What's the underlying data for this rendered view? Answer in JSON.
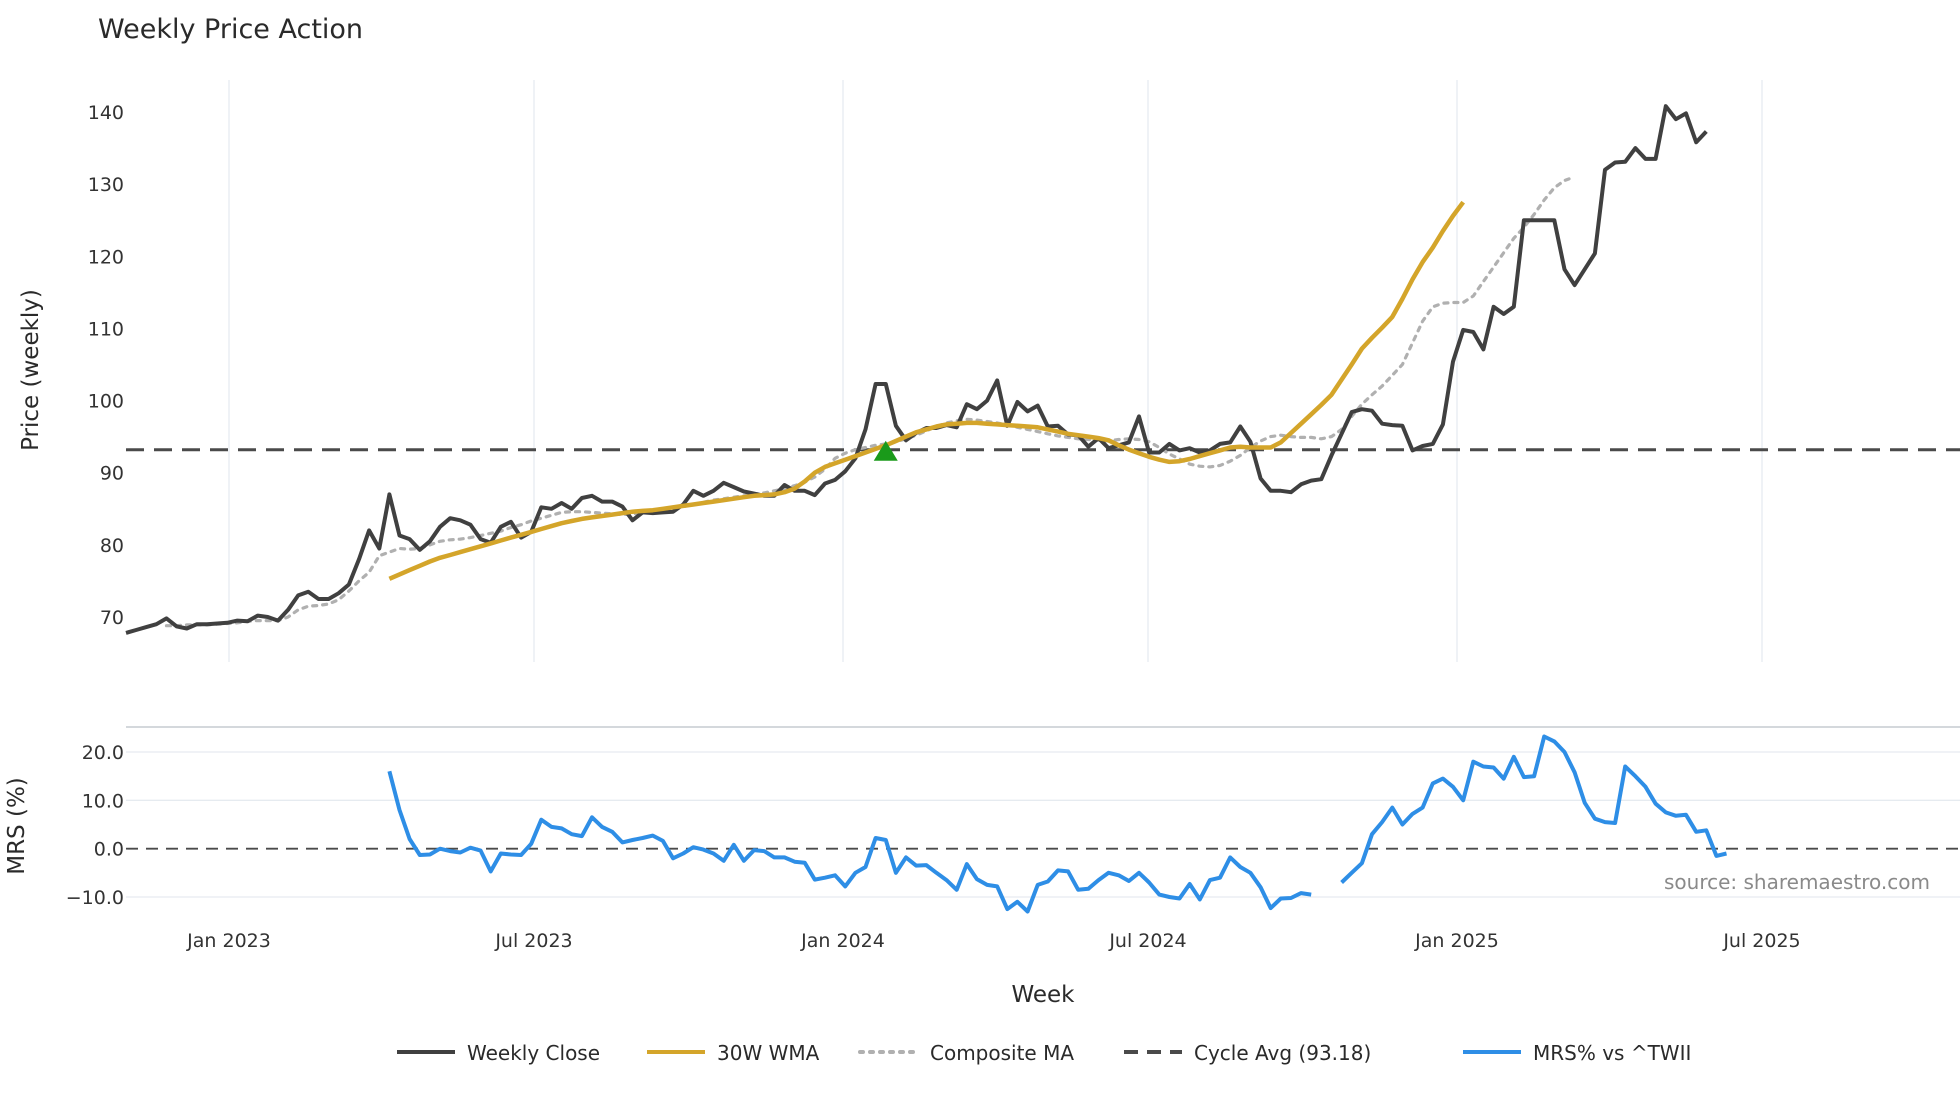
{
  "chart_data": {
    "type": "line",
    "title": "Weekly Price Action",
    "source": "source: sharemaestro.com",
    "xlabel": "Week",
    "x_ticks": [
      "Jan 2023",
      "Jul 2023",
      "Jan 2024",
      "Jul 2024",
      "Jan 2025",
      "Jul 2025"
    ],
    "price_panel": {
      "ylabel": "Price (weekly)",
      "ylim": [
        64,
        143
      ],
      "y_ticks": [
        70,
        80,
        90,
        100,
        110,
        120,
        130,
        140
      ],
      "weekly_close": [
        67.8,
        68.2,
        68.6,
        69.0,
        69.8,
        68.7,
        68.4,
        69.0,
        69.0,
        69.1,
        69.2,
        69.5,
        69.4,
        70.2,
        70.0,
        69.5,
        71.0,
        73.0,
        73.5,
        72.5,
        72.5,
        73.3,
        74.5,
        78.0,
        82.0,
        79.5,
        87.0,
        81.3,
        80.8,
        79.3,
        80.5,
        82.5,
        83.7,
        83.4,
        82.8,
        80.8,
        80.3,
        82.5,
        83.2,
        81.0,
        81.8,
        85.2,
        85.0,
        85.8,
        85.0,
        86.5,
        86.8,
        86.0,
        86.0,
        85.3,
        83.4,
        84.5,
        84.4,
        84.5,
        84.6,
        85.6,
        87.5,
        86.8,
        87.5,
        88.6,
        88.0,
        87.4,
        87.1,
        86.8,
        86.8,
        88.3,
        87.5,
        87.5,
        86.9,
        88.5,
        89.0,
        90.2,
        92.0,
        96.0,
        102.3,
        102.3,
        96.5,
        94.5,
        95.5,
        96.2,
        96.2,
        96.6,
        96.3,
        99.5,
        98.8,
        100.0,
        102.8,
        96.5,
        99.8,
        98.5,
        99.3,
        96.4,
        96.5,
        95.3,
        95.2,
        93.6,
        94.8,
        93.4,
        93.8,
        94.2,
        97.8,
        92.8,
        92.8,
        94.0,
        93.1,
        93.4,
        92.8,
        93.1,
        94.0,
        94.2,
        96.4,
        94.3,
        89.2,
        87.5,
        87.5,
        87.3,
        88.4,
        88.9,
        89.1,
        92.4,
        95.4,
        98.4,
        98.8,
        98.6,
        96.8,
        96.6,
        96.5,
        93.1,
        93.7,
        94.0,
        96.7,
        105.4,
        109.8,
        109.5,
        107.1,
        113.0,
        112.0,
        113.0,
        125.0,
        125.0,
        125.0,
        125.0,
        118.2,
        116.0,
        118.2,
        120.4,
        132.0,
        133.0,
        133.1,
        135.0,
        133.5,
        133.5,
        140.8,
        139.0,
        139.8,
        135.8,
        137.3
      ],
      "wma_30w": {
        "start_week": 26,
        "values": [
          75.3,
          75.9,
          76.5,
          77.1,
          77.7,
          78.2,
          78.6,
          79.0,
          79.4,
          79.8,
          80.2,
          80.6,
          81.0,
          81.4,
          81.8,
          82.2,
          82.6,
          83.0,
          83.3,
          83.6,
          83.8,
          84.0,
          84.2,
          84.4,
          84.6,
          84.7,
          84.8,
          85.0,
          85.2,
          85.4,
          85.6,
          85.8,
          86.0,
          86.2,
          86.4,
          86.6,
          86.8,
          86.9,
          87.0,
          87.3,
          87.8,
          88.8,
          90.0,
          90.8,
          91.3,
          91.8,
          92.3,
          92.8,
          93.3,
          93.8,
          94.4,
          95.0,
          95.6,
          96.0,
          96.4,
          96.7,
          96.8,
          96.9,
          96.9,
          96.8,
          96.7,
          96.6,
          96.5,
          96.4,
          96.3,
          96.0,
          95.7,
          95.4,
          95.2,
          95.0,
          94.8,
          94.5,
          93.8,
          93.2,
          92.7,
          92.2,
          91.8,
          91.5,
          91.6,
          91.9,
          92.3,
          92.7,
          93.1,
          93.5,
          93.6,
          93.5,
          93.5,
          93.5,
          94.2,
          95.5,
          96.8,
          98.1,
          99.4,
          100.8,
          102.9,
          105.0,
          107.2,
          108.7,
          110.1,
          111.6,
          114.1,
          116.8,
          119.2,
          121.2,
          123.5,
          125.6,
          127.5
        ]
      },
      "composite_ma": {
        "start_week": 4,
        "values": [
          68.8,
          68.8,
          68.9,
          68.9,
          68.9,
          69.0,
          69.1,
          69.2,
          69.4,
          69.5,
          69.5,
          69.5,
          70.0,
          71.0,
          71.5,
          71.6,
          71.8,
          72.4,
          73.6,
          75.0,
          76.2,
          78.5,
          79.0,
          79.5,
          79.4,
          79.5,
          80.0,
          80.5,
          80.7,
          80.8,
          81.0,
          81.3,
          81.6,
          81.9,
          82.4,
          82.8,
          83.3,
          83.7,
          84.1,
          84.5,
          84.6,
          84.6,
          84.5,
          84.4,
          84.3,
          84.2,
          84.3,
          84.4,
          84.6,
          84.8,
          85.0,
          85.3,
          85.6,
          85.9,
          86.2,
          86.4,
          86.6,
          86.8,
          87.0,
          87.2,
          87.5,
          87.8,
          88.2,
          88.7,
          89.4,
          90.5,
          92.0,
          92.7,
          93.2,
          93.5,
          93.8,
          94.0,
          94.3,
          94.7,
          95.2,
          95.8,
          96.4,
          96.9,
          97.2,
          97.4,
          97.3,
          97.1,
          96.9,
          96.6,
          96.3,
          96.0,
          95.7,
          95.4,
          95.1,
          94.9,
          94.7,
          94.6,
          94.5,
          94.4,
          94.6,
          94.7,
          94.6,
          94.3,
          93.5,
          92.6,
          91.9,
          91.2,
          90.9,
          90.8,
          91.0,
          91.6,
          92.4,
          93.5,
          94.4,
          95.0,
          95.2,
          95.0,
          94.9,
          94.9,
          94.7,
          95.0,
          96.0,
          97.8,
          99.5,
          100.8,
          102.0,
          103.5,
          105.0,
          108.0,
          111.0,
          113.0,
          113.5,
          113.6,
          113.6,
          114.5,
          116.5,
          118.5,
          120.5,
          122.5,
          124.0,
          125.8,
          127.8,
          129.5,
          130.5,
          131.0
        ]
      },
      "cycle_avg": 93.18,
      "signal_marker": {
        "week": 75,
        "price": 92.9
      }
    },
    "mrs_panel": {
      "ylabel": "MRS (%)",
      "ylim": [
        -15,
        26
      ],
      "y_ticks": [
        -10.0,
        0.0,
        10.0,
        20.0
      ],
      "tick_labels": [
        "−10.0",
        "0.0",
        "10.0",
        "20.0"
      ],
      "segment_1": {
        "start_week": 26,
        "values": [
          16,
          8,
          2,
          -1.3,
          -1.2,
          0,
          -0.5,
          -0.8,
          0.2,
          -0.4,
          -4.7,
          -1,
          -1.2,
          -1.3,
          1,
          6,
          4.5,
          4.2,
          3,
          2.6,
          6.5,
          4.5,
          3.5,
          1.3,
          1.8,
          2.2,
          2.7,
          1.6,
          -2,
          -1,
          0.3,
          -0.2,
          -1,
          -2.5,
          0.8,
          -2.5,
          -0.3,
          -0.5,
          -1.8,
          -1.8,
          -2.7,
          -2.9,
          -6.4,
          -6,
          -5.5,
          -7.8,
          -5,
          -3.8,
          2.2,
          1.8,
          -5,
          -1.8,
          -3.5,
          -3.4,
          -5,
          -6.5,
          -8.5,
          -3.2,
          -6.3,
          -7.5,
          -7.8,
          -12.5,
          -11,
          -13,
          -7.5,
          -6.8,
          -4.5,
          -4.7,
          -8.5,
          -8.3,
          -6.5,
          -5,
          -5.5,
          -6.7,
          -5,
          -7,
          -9.5,
          -10,
          -10.3,
          -7.3,
          -10.5,
          -6.5,
          -6,
          -1.8,
          -3.8,
          -5,
          -8,
          -12.3,
          -10.3,
          -10.2,
          -9.2,
          -9.5
        ]
      },
      "segment_2": {
        "start_week": 120,
        "values": [
          -7,
          -5,
          -3,
          3,
          5.5,
          8.5,
          5,
          7.2,
          8.5,
          13.5,
          14.5,
          12.8,
          10,
          18,
          17,
          16.8,
          14.5,
          19,
          14.8,
          15,
          23.2,
          22.2,
          20,
          15.8,
          9.5,
          6.2,
          5.5,
          5.3,
          17,
          15,
          12.8,
          9.3,
          7.5,
          6.8,
          7,
          3.5,
          3.8,
          -1.5,
          -1
        ]
      }
    },
    "legend": [
      {
        "label": "Weekly Close",
        "style": "solid",
        "color": "#404040"
      },
      {
        "label": "30W WMA",
        "style": "solid",
        "color": "#d4a52a"
      },
      {
        "label": "Composite MA",
        "style": "dotted",
        "color": "#b0b0b0"
      },
      {
        "label": "Cycle Avg (93.18)",
        "style": "dashed",
        "color": "#4a4a4a"
      },
      {
        "label": "MRS% vs ^TWII",
        "style": "solid",
        "color": "#2e8ee6"
      }
    ],
    "colors": {
      "close": "#404040",
      "wma": "#d4a52a",
      "composite": "#b0b0b0",
      "cycle": "#4a4a4a",
      "mrs": "#2e8ee6",
      "signal": "#1a9a1a",
      "grid": "#e6ebf0"
    }
  }
}
